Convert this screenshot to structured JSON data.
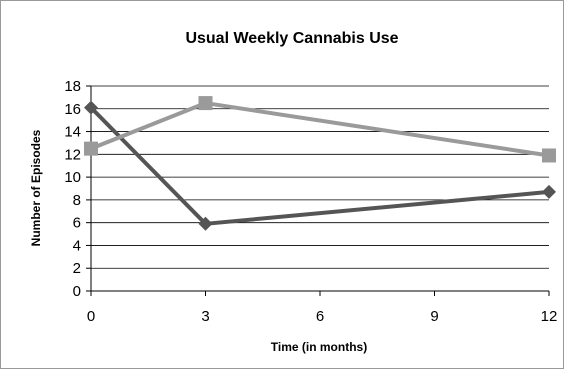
{
  "chart_data": {
    "type": "line",
    "title": "Usual Weekly Cannabis Use",
    "xlabel": "Time (in months)",
    "ylabel": "Number of Episodes",
    "xlim": [
      0,
      12
    ],
    "ylim": [
      0,
      18
    ],
    "x_ticks": [
      0,
      3,
      6,
      9,
      12
    ],
    "y_ticks": [
      0,
      2,
      4,
      6,
      8,
      10,
      12,
      14,
      16,
      18
    ],
    "grid": "horizontal",
    "legend": "none",
    "series": [
      {
        "color": "#555555",
        "marker": "diamond",
        "points": [
          {
            "x": 0,
            "y": 16.1
          },
          {
            "x": 3,
            "y": 5.9
          },
          {
            "x": 12,
            "y": 8.7
          }
        ]
      },
      {
        "color": "#9a9a9a",
        "marker": "square",
        "points": [
          {
            "x": 0,
            "y": 12.5
          },
          {
            "x": 3,
            "y": 16.5
          },
          {
            "x": 12,
            "y": 11.9
          }
        ]
      }
    ]
  }
}
